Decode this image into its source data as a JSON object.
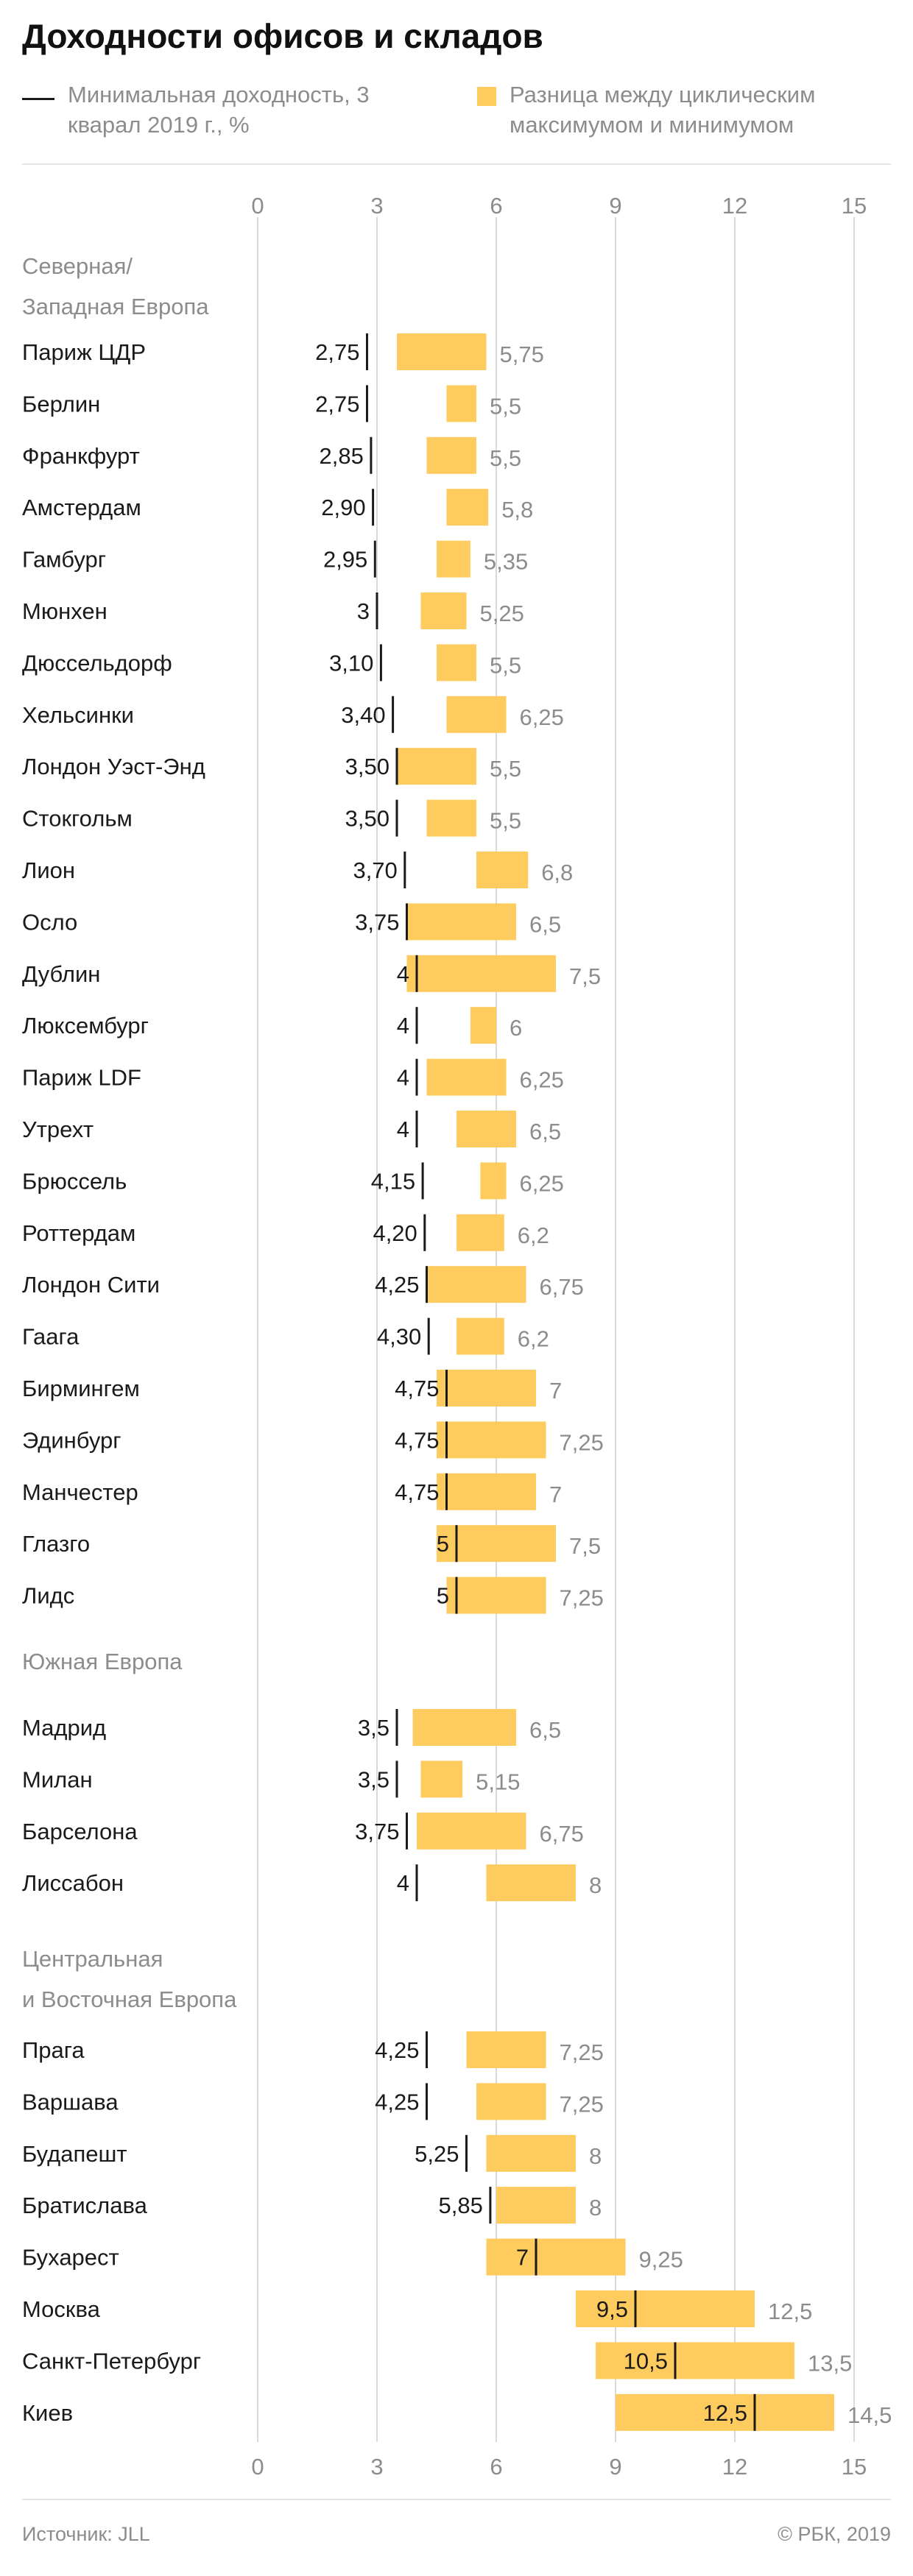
{
  "title": "Доходности офисов и складов",
  "legend": {
    "min_yield": "Минимальная доходность, 3 кварал 2019 г., %",
    "range": "Разница между циклическим максимумом и минимумом"
  },
  "source": "Источник: JLL",
  "copyright": "© РБК, 2019",
  "colors": {
    "bar": "#fecb5f",
    "marker": "#1a1a1a",
    "grid": "#d9d9d9",
    "muted": "#8c8c8c"
  },
  "chart_data": {
    "type": "bar",
    "orientation": "horizontal",
    "xlim": [
      0,
      15
    ],
    "xticks": [
      "0",
      "3",
      "6",
      "9",
      "12",
      "15"
    ],
    "grid": true,
    "groups": [
      {
        "name": "Северная/ Западная Европа",
        "rows": [
          {
            "city": "Париж ЦДР",
            "min_label": "2,75",
            "min": 2.75,
            "bar_start": 3.5,
            "bar_end": 5.75,
            "max_label": "5,75"
          },
          {
            "city": "Берлин",
            "min_label": "2,75",
            "min": 2.75,
            "bar_start": 4.75,
            "bar_end": 5.5,
            "max_label": "5,5"
          },
          {
            "city": "Франкфурт",
            "min_label": "2,85",
            "min": 2.85,
            "bar_start": 4.25,
            "bar_end": 5.5,
            "max_label": "5,5"
          },
          {
            "city": "Амстердам",
            "min_label": "2,90",
            "min": 2.9,
            "bar_start": 4.75,
            "bar_end": 5.8,
            "max_label": "5,8"
          },
          {
            "city": "Гамбург",
            "min_label": "2,95",
            "min": 2.95,
            "bar_start": 4.5,
            "bar_end": 5.35,
            "max_label": "5,35"
          },
          {
            "city": "Мюнхен",
            "min_label": "3",
            "min": 3.0,
            "bar_start": 4.1,
            "bar_end": 5.25,
            "max_label": "5,25"
          },
          {
            "city": "Дюссельдорф",
            "min_label": "3,10",
            "min": 3.1,
            "bar_start": 4.5,
            "bar_end": 5.5,
            "max_label": "5,5"
          },
          {
            "city": "Хельсинки",
            "min_label": "3,40",
            "min": 3.4,
            "bar_start": 4.75,
            "bar_end": 6.25,
            "max_label": "6,25"
          },
          {
            "city": "Лондон Уэст-Энд",
            "min_label": "3,50",
            "min": 3.5,
            "bar_start": 3.5,
            "bar_end": 5.5,
            "max_label": "5,5"
          },
          {
            "city": "Стокгольм",
            "min_label": "3,50",
            "min": 3.5,
            "bar_start": 4.25,
            "bar_end": 5.5,
            "max_label": "5,5"
          },
          {
            "city": "Лион",
            "min_label": "3,70",
            "min": 3.7,
            "bar_start": 5.5,
            "bar_end": 6.8,
            "max_label": "6,8"
          },
          {
            "city": "Осло",
            "min_label": "3,75",
            "min": 3.75,
            "bar_start": 3.75,
            "bar_end": 6.5,
            "max_label": "6,5"
          },
          {
            "city": "Дублин",
            "min_label": "4",
            "min": 4.0,
            "bar_start": 3.75,
            "bar_end": 7.5,
            "max_label": "7,5"
          },
          {
            "city": "Люксембург",
            "min_label": "4",
            "min": 4.0,
            "bar_start": 5.35,
            "bar_end": 6.0,
            "max_label": "6"
          },
          {
            "city": "Париж LDF",
            "min_label": "4",
            "min": 4.0,
            "bar_start": 4.25,
            "bar_end": 6.25,
            "max_label": "6,25"
          },
          {
            "city": "Утрехт",
            "min_label": "4",
            "min": 4.0,
            "bar_start": 5.0,
            "bar_end": 6.5,
            "max_label": "6,5"
          },
          {
            "city": "Брюссель",
            "min_label": "4,15",
            "min": 4.15,
            "bar_start": 5.6,
            "bar_end": 6.25,
            "max_label": "6,25"
          },
          {
            "city": "Роттердам",
            "min_label": "4,20",
            "min": 4.2,
            "bar_start": 5.0,
            "bar_end": 6.2,
            "max_label": "6,2"
          },
          {
            "city": "Лондон Сити",
            "min_label": "4,25",
            "min": 4.25,
            "bar_start": 4.25,
            "bar_end": 6.75,
            "max_label": "6,75"
          },
          {
            "city": "Гаага",
            "min_label": "4,30",
            "min": 4.3,
            "bar_start": 5.0,
            "bar_end": 6.2,
            "max_label": "6,2"
          },
          {
            "city": "Бирмингем",
            "min_label": "4,75",
            "min": 4.75,
            "bar_start": 4.5,
            "bar_end": 7.0,
            "max_label": "7"
          },
          {
            "city": "Эдинбург",
            "min_label": "4,75",
            "min": 4.75,
            "bar_start": 4.5,
            "bar_end": 7.25,
            "max_label": "7,25"
          },
          {
            "city": "Манчестер",
            "min_label": "4,75",
            "min": 4.75,
            "bar_start": 4.5,
            "bar_end": 7.0,
            "max_label": "7"
          },
          {
            "city": "Глазго",
            "min_label": "5",
            "min": 5.0,
            "bar_start": 4.5,
            "bar_end": 7.5,
            "max_label": "7,5",
            "min_inside": true
          },
          {
            "city": "Лидс",
            "min_label": "5",
            "min": 5.0,
            "bar_start": 4.75,
            "bar_end": 7.25,
            "max_label": "7,25",
            "min_inside": true
          }
        ]
      },
      {
        "name": "Южная Европа",
        "rows": [
          {
            "city": "Мадрид",
            "min_label": "3,5",
            "min": 3.5,
            "bar_start": 3.9,
            "bar_end": 6.5,
            "max_label": "6,5"
          },
          {
            "city": "Милан",
            "min_label": "3,5",
            "min": 3.5,
            "bar_start": 4.1,
            "bar_end": 5.15,
            "max_label": "5,15"
          },
          {
            "city": "Барселона",
            "min_label": "3,75",
            "min": 3.75,
            "bar_start": 4.0,
            "bar_end": 6.75,
            "max_label": "6,75"
          },
          {
            "city": "Лиссабон",
            "min_label": "4",
            "min": 4.0,
            "bar_start": 5.75,
            "bar_end": 8.0,
            "max_label": "8"
          }
        ]
      },
      {
        "name": "Центральная и Восточная Европа",
        "rows": [
          {
            "city": "Прага",
            "min_label": "4,25",
            "min": 4.25,
            "bar_start": 5.25,
            "bar_end": 7.25,
            "max_label": "7,25"
          },
          {
            "city": "Варшава",
            "min_label": "4,25",
            "min": 4.25,
            "bar_start": 5.5,
            "bar_end": 7.25,
            "max_label": "7,25"
          },
          {
            "city": "Будапешт",
            "min_label": "5,25",
            "min": 5.25,
            "bar_start": 5.75,
            "bar_end": 8.0,
            "max_label": "8"
          },
          {
            "city": "Братислава",
            "min_label": "5,85",
            "min": 5.85,
            "bar_start": 6.0,
            "bar_end": 8.0,
            "max_label": "8"
          },
          {
            "city": "Бухарест",
            "min_label": "7",
            "min": 7.0,
            "bar_start": 5.75,
            "bar_end": 9.25,
            "max_label": "9,25",
            "min_inside": true
          },
          {
            "city": "Москва",
            "min_label": "9,5",
            "min": 9.5,
            "bar_start": 8.0,
            "bar_end": 12.5,
            "max_label": "12,5",
            "min_inside": true
          },
          {
            "city": "Санкт-Петербург",
            "min_label": "10,5",
            "min": 10.5,
            "bar_start": 8.5,
            "bar_end": 13.5,
            "max_label": "13,5",
            "min_inside": true
          },
          {
            "city": "Киев",
            "min_label": "12,5",
            "min": 12.5,
            "bar_start": 9.0,
            "bar_end": 14.5,
            "max_label": "14,5",
            "min_inside": true
          }
        ]
      }
    ]
  }
}
